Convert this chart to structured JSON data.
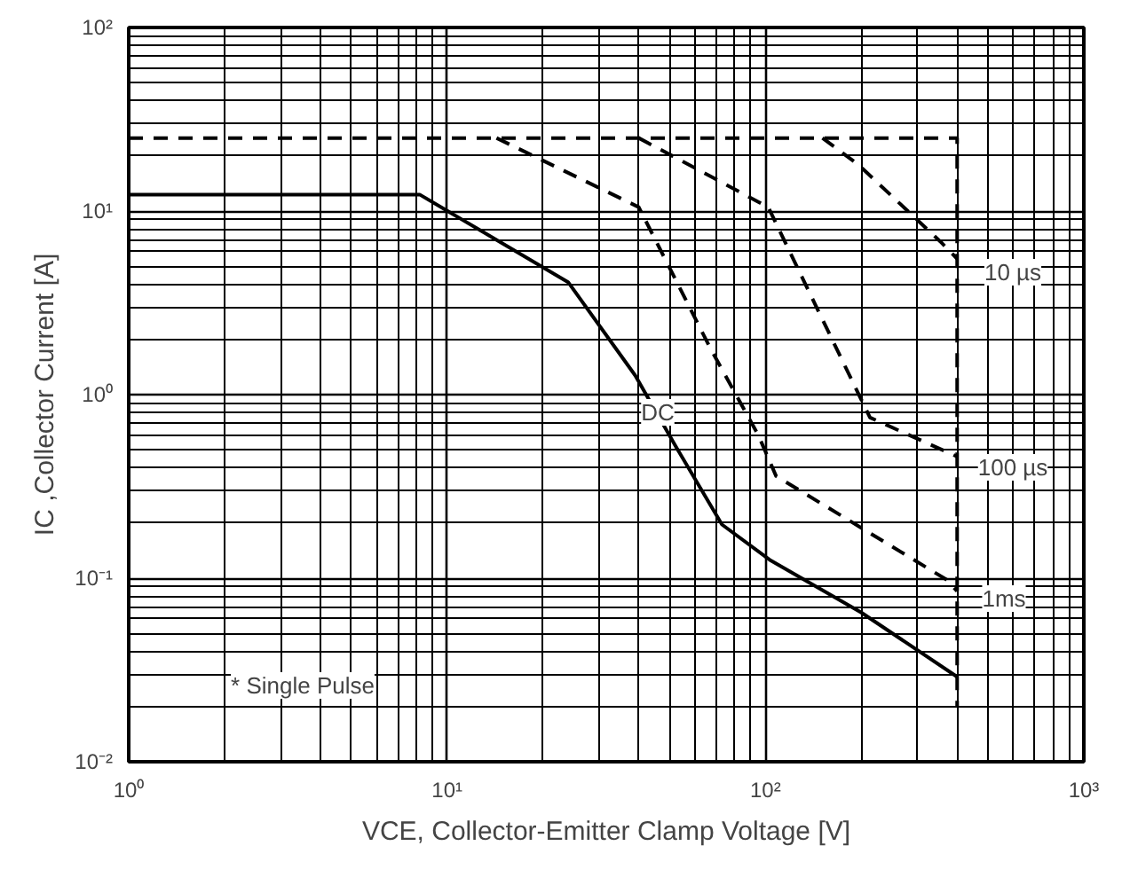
{
  "chart_data": {
    "type": "line",
    "xlabel": "VCE, Collector-Emitter Clamp Voltage [V]",
    "ylabel": "IC ,Collector Current [A]",
    "log": "xy",
    "grid": true,
    "xlim": [
      1,
      1000
    ],
    "ylim": [
      0.01,
      100
    ],
    "xticks": [
      {
        "value": 1,
        "label": "10⁰"
      },
      {
        "value": 10,
        "label": "10¹"
      },
      {
        "value": 100,
        "label": "10²"
      },
      {
        "value": 1000,
        "label": "10³"
      }
    ],
    "yticks": [
      {
        "value": 0.01,
        "label": "10⁻²"
      },
      {
        "value": 0.1,
        "label": "10⁻¹"
      },
      {
        "value": 1,
        "label": "10⁰"
      },
      {
        "value": 10,
        "label": "10¹"
      },
      {
        "value": 100,
        "label": "10²"
      }
    ],
    "series": [
      {
        "color": "#000000",
        "line_style": "solid",
        "x": [
          1,
          8.2,
          24,
          39,
          52,
          73,
          103,
          200,
          400
        ],
        "values": [
          12.3,
          12.3,
          4.1,
          1.27,
          0.53,
          0.196,
          0.126,
          0.065,
          0.029
        ]
      },
      {
        "color": "#000000",
        "line_style": "dashed",
        "x": [
          14.3,
          40,
          67,
          95,
          108,
          371,
          400
        ],
        "values": [
          25,
          10.5,
          1.8,
          0.6,
          0.36,
          0.098,
          0.085
        ]
      },
      {
        "color": "#000000",
        "line_style": "dashed",
        "x": [
          40,
          102,
          188,
          213,
          400
        ],
        "values": [
          25,
          10.5,
          1.17,
          0.75,
          0.46
        ]
      },
      {
        "color": "#000000",
        "line_style": "dashed",
        "x": [
          151,
          195,
          355,
          400
        ],
        "values": [
          25,
          18,
          6.8,
          5.5
        ]
      },
      {
        "color": "#000000",
        "line_style": "dashed",
        "x": [
          1,
          400,
          400
        ],
        "values": [
          25,
          25,
          0.02
        ]
      }
    ],
    "annotations": [
      "10 µs",
      "100 µs",
      "1ms",
      "DC",
      "* Single Pulse"
    ]
  }
}
